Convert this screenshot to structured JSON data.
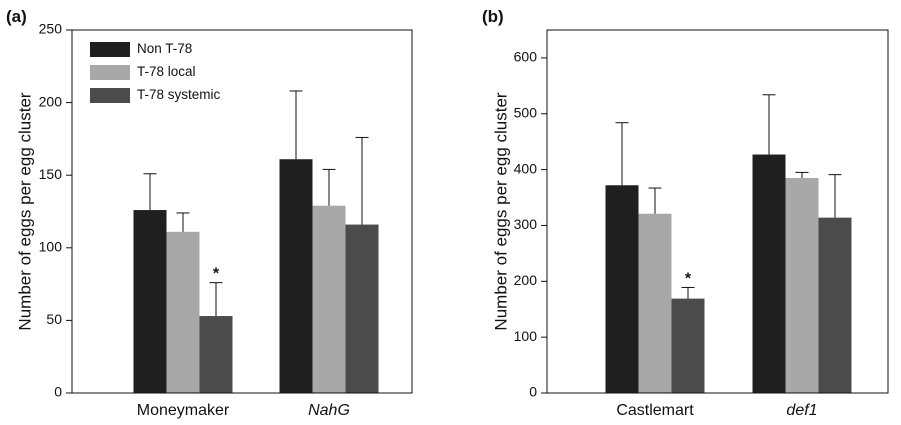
{
  "chart_data": [
    {
      "type": "bar",
      "panel_label": "(a)",
      "ylabel": "Number of eggs per egg cluster",
      "ylim": [
        0,
        250
      ],
      "yticks": [
        0,
        50,
        100,
        150,
        200,
        250
      ],
      "categories": [
        "Moneymaker",
        "NahG"
      ],
      "category_italic": [
        false,
        true
      ],
      "series": [
        {
          "name": "Non T-78",
          "color": "#1f1f1f",
          "values": [
            126,
            161
          ],
          "errors": [
            25,
            47
          ]
        },
        {
          "name": "T-78 local",
          "color": "#a8a8a8",
          "values": [
            111,
            129
          ],
          "errors": [
            13,
            25
          ]
        },
        {
          "name": "T-78 systemic",
          "color": "#4b4b4b",
          "values": [
            53,
            116
          ],
          "errors": [
            23,
            60
          ]
        }
      ],
      "annotations": [
        {
          "text": "*",
          "category": 0,
          "series": 2
        }
      ],
      "legend": {
        "position": "top-left"
      }
    },
    {
      "type": "bar",
      "panel_label": "(b)",
      "ylabel": "Number of eggs per egg cluster",
      "ylim": [
        0,
        650
      ],
      "yticks": [
        0,
        100,
        200,
        300,
        400,
        500,
        600
      ],
      "categories": [
        "Castlemart",
        "def1"
      ],
      "category_italic": [
        false,
        true
      ],
      "series": [
        {
          "name": "Non T-78",
          "color": "#1f1f1f",
          "values": [
            372,
            427
          ],
          "errors": [
            112,
            107
          ]
        },
        {
          "name": "T-78 local",
          "color": "#a8a8a8",
          "values": [
            321,
            385
          ],
          "errors": [
            46,
            10
          ]
        },
        {
          "name": "T-78 systemic",
          "color": "#4b4b4b",
          "values": [
            169,
            314
          ],
          "errors": [
            20,
            77
          ]
        }
      ],
      "annotations": [
        {
          "text": "*",
          "category": 0,
          "series": 2
        }
      ]
    }
  ]
}
